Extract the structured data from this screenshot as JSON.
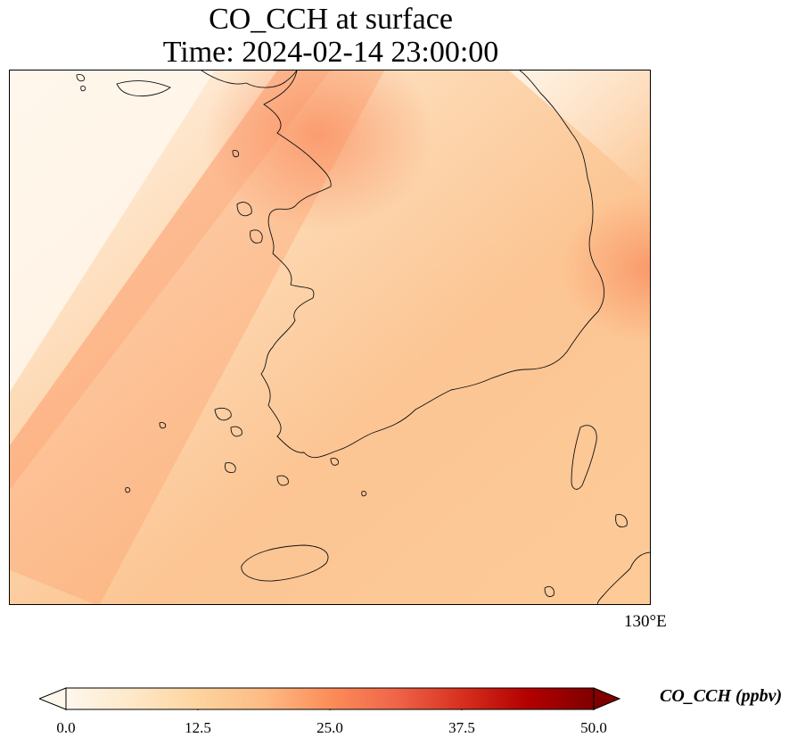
{
  "figure": {
    "title_line1": "CO_CCH at surface",
    "title_line2": "Time: 2024-02-14 23:00:00"
  },
  "map": {
    "variable": "CO_CCH",
    "level": "surface",
    "region": "Korean Peninsula (South Korea) and surrounding seas",
    "longitude_label": "130°E",
    "coastline_color": "#000000"
  },
  "colorbar": {
    "label": "CO_CCH (ppbv)",
    "colormap": "OrRd",
    "min": 0.0,
    "max": 50.0,
    "extend": "both",
    "ticks": [
      {
        "value": 0.0,
        "label": "0.0"
      },
      {
        "value": 12.5,
        "label": "12.5"
      },
      {
        "value": 25.0,
        "label": "25.0"
      },
      {
        "value": 37.5,
        "label": "37.5"
      },
      {
        "value": 50.0,
        "label": "50.0"
      }
    ],
    "colors": {
      "low": "#fff7ec",
      "mid": "#fdbb84",
      "high": "#7f0000"
    }
  }
}
